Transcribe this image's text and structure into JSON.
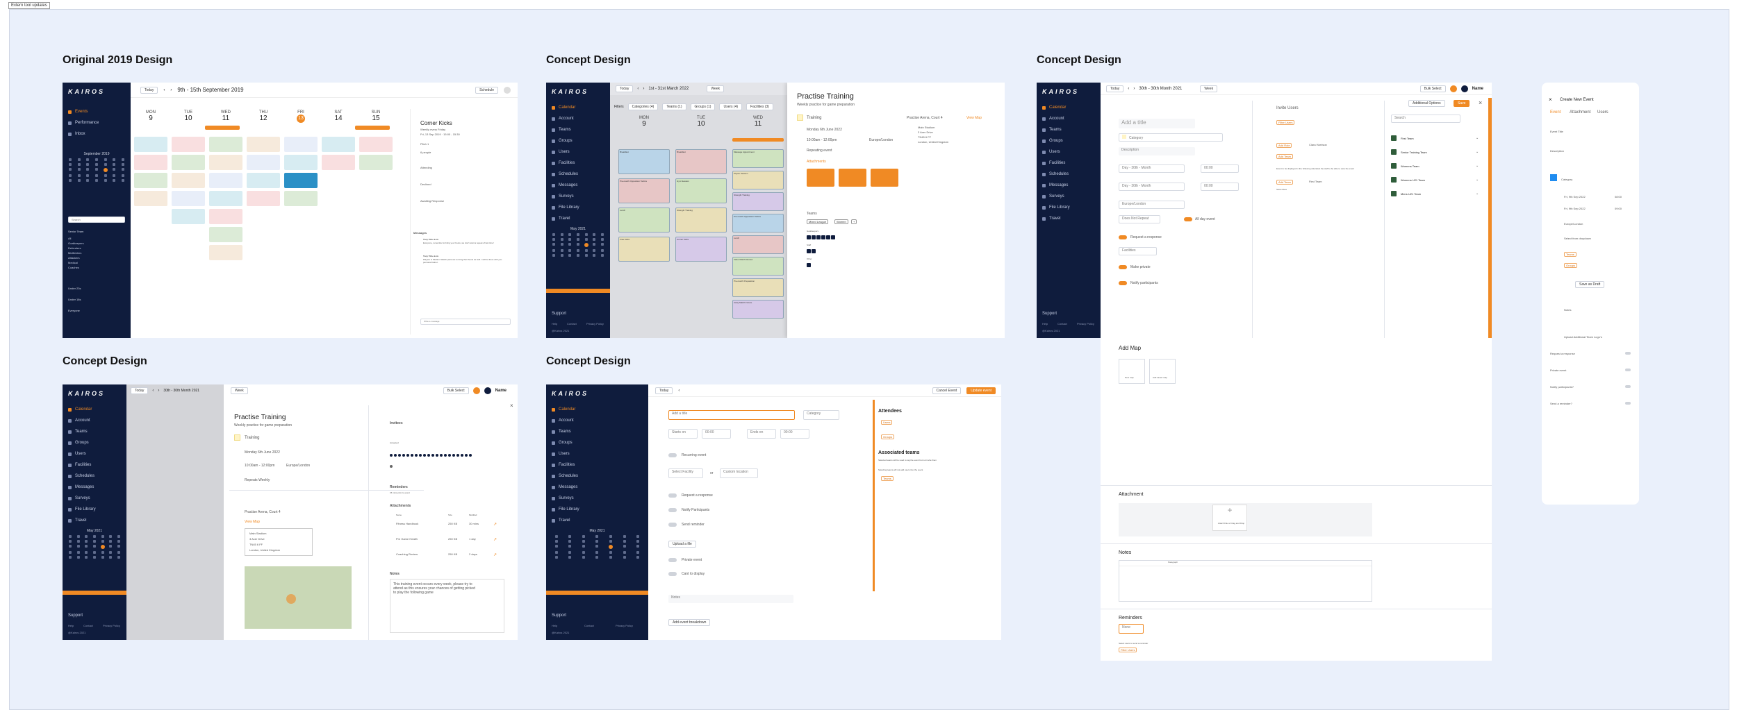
{
  "top_badge": "Extern tool updates",
  "headings": {
    "orig": "Original 2019 Design",
    "c1": "Concept Design",
    "c2": "Concept Design",
    "c3": "Concept Design",
    "c4": "Concept Design"
  },
  "brand": "KAIROS",
  "colors": {
    "accent": "#f08a24",
    "navy": "#0f1c3d",
    "canvas": "#eaf0fb"
  },
  "orig": {
    "today": "Today",
    "date_range": "9th - 15th September 2019",
    "view": "Schedule",
    "nav": [
      "Events",
      "Performance",
      "Inbox"
    ],
    "mini_month": "September 2019",
    "search": "Search",
    "filter_title": "Senior Team",
    "filters": [
      "All",
      "Goalkeepers",
      "Defenders",
      "Midfielders",
      "Attackers",
      "Medical",
      "Coaches"
    ],
    "groups": [
      "Under 23s",
      "Under 18s",
      "Everyone"
    ],
    "days": [
      {
        "dow": "MON",
        "num": "9"
      },
      {
        "dow": "TUE",
        "num": "10"
      },
      {
        "dow": "WED",
        "num": "11"
      },
      {
        "dow": "THU",
        "num": "12"
      },
      {
        "dow": "FRI",
        "num": "13"
      },
      {
        "dow": "SAT",
        "num": "14"
      },
      {
        "dow": "SUN",
        "num": "15"
      }
    ],
    "panel": {
      "title": "Corner Kicks",
      "subtitle": "Weekly every Friday",
      "time": "Fri, 13 Sep 2019 · 15:00 - 15:30",
      "place": "Pitch 1",
      "people": "6 people",
      "attending": "Attending",
      "declined": "Declined",
      "awaiting": "Awaiting Response",
      "messages": "Messages",
      "msg_author1": "Tony Tithe & Jo",
      "msg1": "Everyone, remember to bring your boots, we don't want a repeat of last time!",
      "msg_author2": "Tony Tithe & Jo",
      "msg2": "Players in Medium Watch pairs are to bring their boots as well. I will be there with you personal trainer.",
      "reply": "Write a message"
    }
  },
  "c1": {
    "today": "Today",
    "date_range": "1st - 31st March 2022",
    "view": "Week",
    "nav": [
      "Calendar",
      "Account",
      "Teams",
      "Groups",
      "Users",
      "Facilities",
      "Schedules",
      "Messages",
      "Surveys",
      "File Library",
      "Travel"
    ],
    "mini_month": "May 2021",
    "support": "Support",
    "foot": [
      "Help",
      "Contact",
      "Privacy Policy"
    ],
    "copyright": "@Kairos 2021",
    "filters_label": "Filters",
    "filter_chips": [
      "Categories (4)",
      "Teams (1)",
      "Groups (1)",
      "Users (4)",
      "Facilities (3)"
    ],
    "days": [
      {
        "dow": "MON",
        "num": "9"
      },
      {
        "dow": "TUE",
        "num": "10"
      },
      {
        "dow": "WED",
        "num": "11"
      }
    ],
    "events_col1": [
      "Breakfast",
      "Pre-match Opposition Tactics",
      "Lunch",
      "Free Kicks"
    ],
    "events_col2": [
      "Breakfast",
      "Gym Session",
      "Strength Training",
      "Corner Kicks"
    ],
    "events_col3": [
      "Massage Appointment",
      "Physio Session",
      "Strength Training",
      "Pre-match Opposition Tactics",
      "Lunch",
      "Video Match Review",
      "Pre-match Preparation",
      "Away Match Fixture"
    ],
    "panel": {
      "title": "Practise Training",
      "subtitle": "Weekly practice for game preparation",
      "category": "Training",
      "date": "Monday 6th June 2022",
      "time": "10:00am - 12:00pm",
      "tz": "Europe/London",
      "repeat": "Repeating event",
      "location": "Practise Arena, Court 4",
      "view_map": "View Map",
      "address": [
        "Main Stadium",
        "3 Acer Drive",
        "TN45 6 FF",
        "London, United Kingdom"
      ],
      "attachments": "Attachments",
      "teams": "Teams",
      "team_chips": [
        "Mixed League",
        "Women",
        "+"
      ],
      "groups": [
        "Goalkeepers",
        "Staff",
        "Other"
      ]
    }
  },
  "c2": {
    "today": "Today",
    "date_range": "30th - 30th Month 2021",
    "view": "Week",
    "bulk": "Bulk Select",
    "name": "Name",
    "title_ph": "Add a title",
    "category": "Category",
    "description": "Description",
    "start": "Day - 30th - Month",
    "end": "Day - 30th - Month",
    "t1": "00:00",
    "t2": "00:00",
    "tz": "Europe/London",
    "repeat": "Does Not Repeat",
    "allday": "All day event",
    "request": "Request a response",
    "facilities": "Facilities",
    "private": "Make private",
    "notify": "Notify participants",
    "invite": "Invite Users",
    "filter_users": "Filter Users",
    "add_role": "Add Role",
    "clara": "Clara Harrison",
    "add_team": "Add Team",
    "first_team": "First Team",
    "invite_note": "Event to be displayed in the following calendars the staff to be able to view the event",
    "more": "Show More",
    "options": "Additional Options",
    "save": "Save",
    "search": "Search",
    "teams": [
      "First Team",
      "Senior Training Team",
      "Womens Team",
      "Womens U21 Team",
      "Mens U21 Team"
    ],
    "support": "Support",
    "foot": [
      "Help",
      "Contact",
      "Privacy Policy"
    ],
    "copyright": "@Kairos 2021",
    "add_map": "Add Map",
    "new_map": "New map",
    "add_saved_map": "Add saved map",
    "attachment": "Attachment",
    "attach_hint": "Attach File or Drag and Drop",
    "notes": "Notes",
    "paragraph": "Paragraph",
    "reminders": "Reminders",
    "none": "None",
    "reminder_hint": "Select users to send a reminder",
    "filter_users2": "Filter Users"
  },
  "mobile": {
    "title": "Create New Event",
    "tabs": [
      "Event",
      "Attachment",
      "Users"
    ],
    "event_title": "Event Title",
    "description": "Description",
    "category": "Category",
    "date1": "Fri, 9th Sep 2022",
    "date2": "Fri, 9th Sep 2022",
    "time1": "08:00",
    "time2": "09:00",
    "tz": "Europe/London",
    "dropdown": "Select from dropdown",
    "teams": "Teams",
    "groups": "Groups",
    "draft": "Save as Draft",
    "notes": "Notes",
    "upload": "Upload Additional Team Logo's",
    "toggles": [
      "Request a response",
      "Private event",
      "Notify participants?",
      "Send a reminder?"
    ]
  },
  "c3": {
    "today": "Today",
    "date_range": "30th - 30th Month 2021",
    "view": "Week",
    "bulk": "Bulk Select",
    "name": "Name",
    "title": "Practise Training",
    "subtitle": "Weekly practice for game preparation",
    "category": "Training",
    "date": "Monday 6th June 2022",
    "time": "10:00am - 12:00pm",
    "tz": "Europe/London",
    "repeat": "Repeats Weekly",
    "location": "Practise Arena, Court 4",
    "view_map": "View Map",
    "address": [
      "Main Stadium",
      "3 Acer Drive",
      "TN45 6 FF",
      "London, United Kingdom"
    ],
    "invitees": "Invitees",
    "going": "Accepted",
    "reminders": "Reminders",
    "reminder_note": "15 mins prior to event",
    "attachments": "Attachments",
    "attach_cols": [
      "Name",
      "Size",
      "Modified"
    ],
    "files": [
      {
        "name": "Fitness Handbook",
        "size": "250 KB",
        "age": "30 mins"
      },
      {
        "name": "Pre Game Health",
        "size": "250 KB",
        "age": "1 day"
      },
      {
        "name": "Coaching Review",
        "size": "250 KB",
        "age": "2 days"
      }
    ],
    "notes": "Notes",
    "notes_text": "This training event occurs every week, please try to attend as this ensures your chances of getting picked to play the following game"
  },
  "c4": {
    "today": "Today",
    "cancel": "Cancel Event",
    "update": "Update event",
    "title_ph": "Add a title",
    "category": "Category",
    "starts": "Starts on",
    "ends": "Ends on",
    "t1": "00:00",
    "t2": "00:00",
    "recurring": "Recurring event",
    "facility": "Select Facility",
    "or": "or",
    "custom": "Custom location",
    "request": "Request a response",
    "notify": "Notify Participants",
    "reminder": "Send reminder",
    "upload": "Upload a file",
    "private": "Private event",
    "display": "Cant to display",
    "notes": "Notes",
    "breakdown": "Add event breakdown",
    "attendees": "Attendees",
    "chip_users": "Users",
    "chip_groups": "Groups",
    "assoc": "Associated teams",
    "assoc_note": "Selected teams will be used to tag the event but not invite them",
    "assoc_note2": "Selecting teams will not add users into the event",
    "chip_teams": "Teams"
  }
}
